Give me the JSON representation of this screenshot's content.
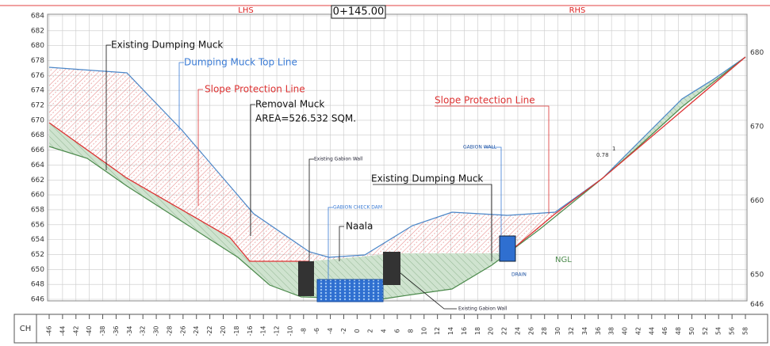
{
  "header": {
    "section": "0+145.00",
    "left": "LHS",
    "right": "RHS"
  },
  "left_axis": [
    646,
    648,
    650,
    652,
    654,
    656,
    658,
    660,
    662,
    664,
    666,
    668,
    670,
    672,
    674,
    676,
    678,
    680,
    682,
    684
  ],
  "right_axis": [
    646,
    650,
    660,
    670,
    680
  ],
  "chainage": {
    "label": "CH",
    "values": [
      -46,
      -44,
      -42,
      -40,
      -38,
      -36,
      -34,
      -32,
      -30,
      -28,
      -26,
      -24,
      -22,
      -20,
      -18,
      -16,
      -14,
      -12,
      -10,
      -8,
      -6,
      -4,
      -2,
      0,
      2,
      4,
      6,
      8,
      10,
      12,
      14,
      16,
      18,
      20,
      22,
      24,
      26,
      28,
      30,
      32,
      34,
      36,
      38,
      40,
      42,
      44,
      46,
      48,
      50,
      52,
      54,
      56,
      58
    ]
  },
  "annotations": {
    "existing_muck_left": "Existing Dumping Muck",
    "muck_top_line": "Dumping Muck Top Line",
    "slope_line_left": "Slope Protection Line",
    "removal_muck": "Removal Muck",
    "area": "AREA=526.532 SQM.",
    "gabion_wall_left": "Existing Gabion Wall",
    "check_dam": "GABION CHECK DAM",
    "naala": "Naala",
    "existing_muck_right": "Existing Dumping Muck",
    "gabion_wall_right": "GABION WALL",
    "slope_line_right": "Slope Protection Line",
    "ngl": "NGL",
    "drain": "DRAIN",
    "gabion_wall_bottom": "Existing Gabion Wall",
    "slope_ratio": "0.78",
    "slope_one": "1"
  }
}
